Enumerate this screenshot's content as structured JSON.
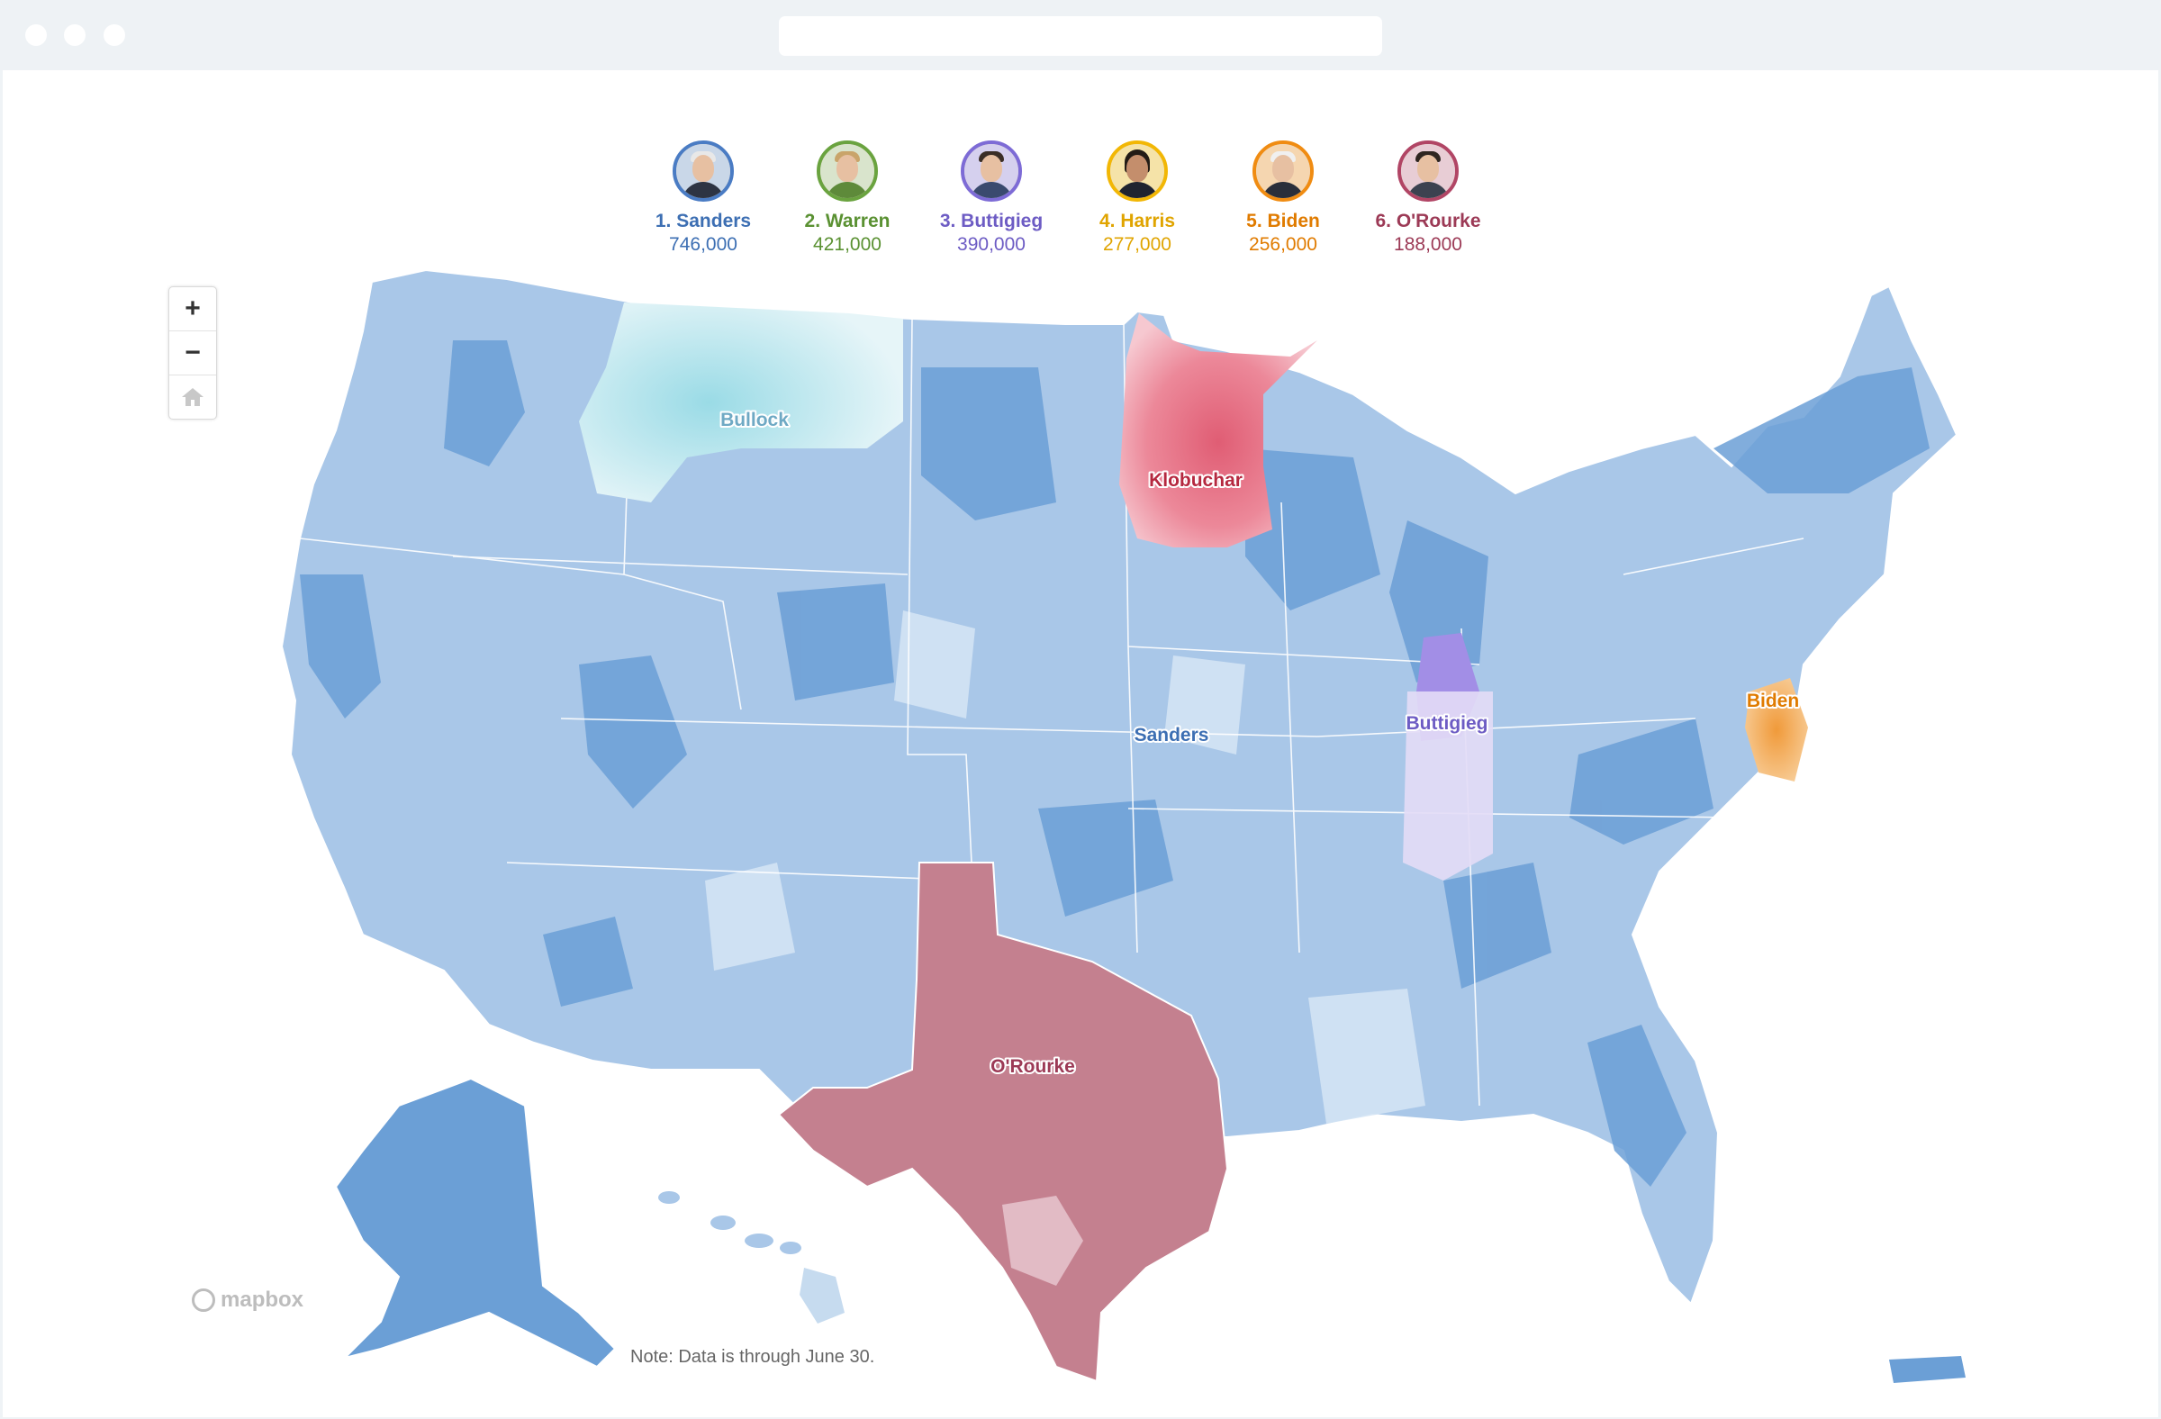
{
  "candidates": [
    {
      "rank_label": "1. Sanders",
      "value": "746,000",
      "color": "#3d6fb3",
      "ring": "#4a7cc4",
      "avatar_icon": "sanders-portrait-icon"
    },
    {
      "rank_label": "2. Warren",
      "value": "421,000",
      "color": "#5a9132",
      "ring": "#6aa33f",
      "avatar_icon": "warren-portrait-icon"
    },
    {
      "rank_label": "3. Buttigieg",
      "value": "390,000",
      "color": "#6d5cc4",
      "ring": "#7d6bd6",
      "avatar_icon": "buttigieg-portrait-icon"
    },
    {
      "rank_label": "4. Harris",
      "value": "277,000",
      "color": "#e0a400",
      "ring": "#f2b705",
      "avatar_icon": "harris-portrait-icon"
    },
    {
      "rank_label": "5. Biden",
      "value": "256,000",
      "color": "#e07b00",
      "ring": "#f08c12",
      "avatar_icon": "biden-portrait-icon"
    },
    {
      "rank_label": "6. O'Rourke",
      "value": "188,000",
      "color": "#9c3a56",
      "ring": "#b14565",
      "avatar_icon": "orourke-portrait-icon"
    }
  ],
  "map": {
    "labels": {
      "bullock": "Bullock",
      "klobuchar": "Klobuchar",
      "sanders": "Sanders",
      "buttigieg": "Buttigieg",
      "biden": "Biden",
      "orourke": "O'Rourke"
    },
    "colors": {
      "sanders_base": "#a9c7e8",
      "sanders_dark": "#6b9fd6",
      "sanders_light": "#d3e3f4",
      "bullock": "#a6e0ea",
      "klobuchar": "#ec7d8f",
      "buttigieg": "#a28ee6",
      "biden": "#f2a245",
      "orourke": "#c4808f"
    }
  },
  "controls": {
    "zoom_in": "+",
    "zoom_out": "−",
    "home_icon": "home-icon"
  },
  "attribution": "mapbox",
  "note": "Note: Data is through June 30."
}
